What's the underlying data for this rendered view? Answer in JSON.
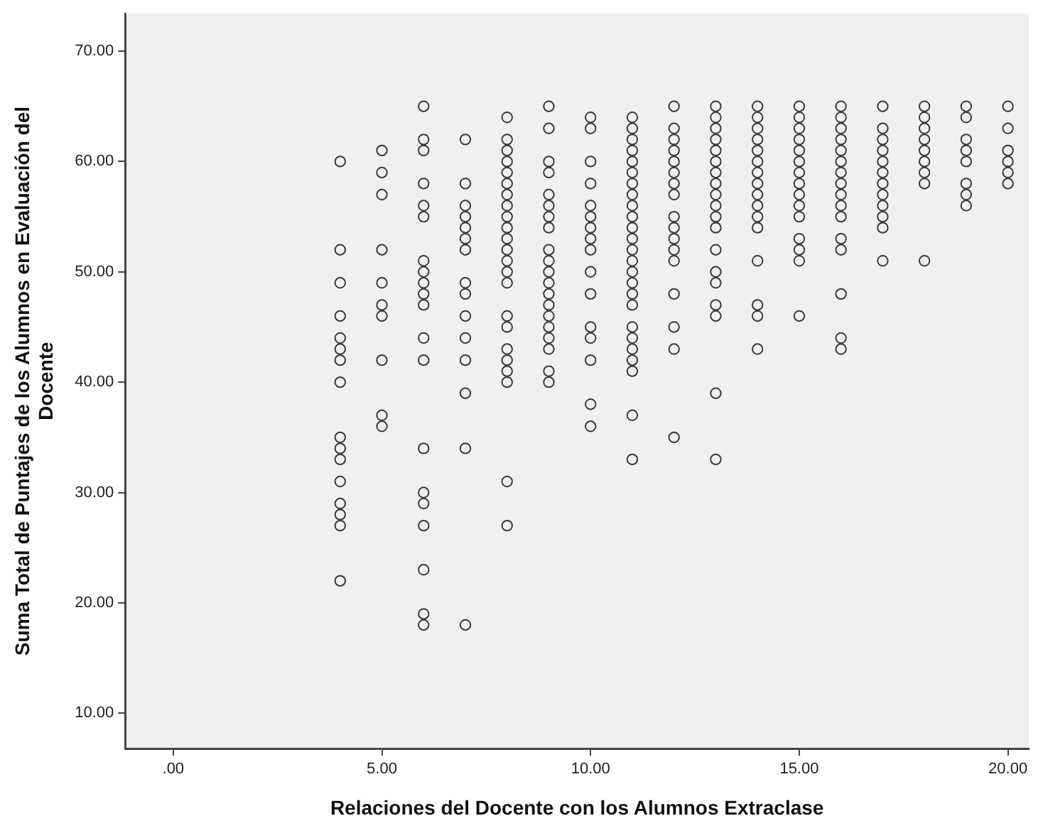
{
  "chart_data": {
    "type": "scatter",
    "xlabel": "Relaciones del Docente con los Alumnos Extraclase",
    "ylabel": "Suma Total de Puntajes de los Alumnos en Evaluación del Docente",
    "color": "#3a3a3a",
    "marker": "circle",
    "xlim": [
      -1.15,
      20.5
    ],
    "ylim": [
      6.8,
      73.4
    ],
    "xticks": [
      {
        "value": 0,
        "label": ".00"
      },
      {
        "value": 5,
        "label": "5.00"
      },
      {
        "value": 10,
        "label": "10.00"
      },
      {
        "value": 15,
        "label": "15.00"
      },
      {
        "value": 20,
        "label": "20.00"
      }
    ],
    "yticks": [
      {
        "value": 10,
        "label": "10.00"
      },
      {
        "value": 20,
        "label": "20.00"
      },
      {
        "value": 30,
        "label": "30.00"
      },
      {
        "value": 40,
        "label": "40.00"
      },
      {
        "value": 50,
        "label": "50.00"
      },
      {
        "value": 60,
        "label": "60.00"
      },
      {
        "value": 70,
        "label": "70.00"
      }
    ],
    "x": [
      4,
      4,
      4,
      4,
      4,
      4,
      4,
      4,
      4,
      4,
      4,
      4,
      4,
      4,
      4,
      4,
      5,
      5,
      5,
      5,
      5,
      5,
      5,
      5,
      5,
      5,
      6,
      6,
      6,
      6,
      6,
      6,
      6,
      6,
      6,
      6,
      6,
      6,
      6,
      6,
      6,
      6,
      6,
      6,
      6,
      6,
      7,
      7,
      7,
      7,
      7,
      7,
      7,
      7,
      7,
      7,
      7,
      7,
      7,
      7,
      7,
      8,
      8,
      8,
      8,
      8,
      8,
      8,
      8,
      8,
      8,
      8,
      8,
      8,
      8,
      8,
      8,
      8,
      8,
      8,
      8,
      8,
      8,
      8,
      9,
      9,
      9,
      9,
      9,
      9,
      9,
      9,
      9,
      9,
      9,
      9,
      9,
      9,
      9,
      9,
      9,
      9,
      9,
      9,
      10,
      10,
      10,
      10,
      10,
      10,
      10,
      10,
      10,
      10,
      10,
      10,
      10,
      10,
      10,
      10,
      11,
      11,
      11,
      11,
      11,
      11,
      11,
      11,
      11,
      11,
      11,
      11,
      11,
      11,
      11,
      11,
      11,
      11,
      11,
      11,
      11,
      11,
      11,
      11,
      11,
      12,
      12,
      12,
      12,
      12,
      12,
      12,
      12,
      12,
      12,
      12,
      12,
      12,
      12,
      12,
      12,
      12,
      13,
      13,
      13,
      13,
      13,
      13,
      13,
      13,
      13,
      13,
      13,
      13,
      13,
      13,
      13,
      13,
      13,
      13,
      13,
      14,
      14,
      14,
      14,
      14,
      14,
      14,
      14,
      14,
      14,
      14,
      14,
      14,
      14,
      14,
      14,
      15,
      15,
      15,
      15,
      15,
      15,
      15,
      15,
      15,
      15,
      15,
      15,
      15,
      15,
      15,
      16,
      16,
      16,
      16,
      16,
      16,
      16,
      16,
      16,
      16,
      16,
      16,
      16,
      16,
      16,
      16,
      17,
      17,
      17,
      17,
      17,
      17,
      17,
      17,
      17,
      17,
      17,
      17,
      18,
      18,
      18,
      18,
      18,
      18,
      18,
      18,
      18,
      19,
      19,
      19,
      19,
      19,
      19,
      19,
      19,
      20,
      20,
      20,
      20,
      20,
      20
    ],
    "values": [
      60,
      52,
      49,
      46,
      44,
      43,
      42,
      40,
      35,
      34,
      33,
      31,
      29,
      28,
      27,
      22,
      61,
      59,
      57,
      52,
      49,
      47,
      46,
      42,
      37,
      36,
      65,
      62,
      61,
      58,
      56,
      55,
      51,
      50,
      49,
      48,
      47,
      44,
      42,
      34,
      30,
      29,
      27,
      23,
      19,
      18,
      62,
      58,
      56,
      55,
      54,
      53,
      52,
      49,
      48,
      46,
      44,
      42,
      39,
      34,
      18,
      64,
      62,
      61,
      60,
      59,
      58,
      57,
      56,
      55,
      54,
      53,
      52,
      51,
      50,
      49,
      46,
      45,
      43,
      42,
      41,
      40,
      31,
      27,
      65,
      63,
      60,
      59,
      57,
      56,
      55,
      54,
      52,
      51,
      50,
      49,
      48,
      47,
      46,
      45,
      44,
      43,
      41,
      40,
      64,
      63,
      60,
      58,
      56,
      55,
      54,
      53,
      52,
      50,
      48,
      45,
      44,
      42,
      38,
      36,
      64,
      63,
      62,
      61,
      60,
      59,
      58,
      57,
      56,
      55,
      54,
      53,
      52,
      51,
      50,
      49,
      48,
      47,
      45,
      44,
      43,
      42,
      41,
      37,
      33,
      65,
      63,
      62,
      61,
      60,
      59,
      58,
      57,
      55,
      54,
      53,
      52,
      51,
      48,
      45,
      43,
      35,
      65,
      64,
      63,
      62,
      61,
      60,
      59,
      58,
      57,
      56,
      55,
      54,
      52,
      50,
      49,
      47,
      46,
      39,
      33,
      65,
      64,
      63,
      62,
      61,
      60,
      59,
      58,
      57,
      56,
      55,
      54,
      51,
      47,
      46,
      43,
      65,
      64,
      63,
      62,
      61,
      60,
      59,
      58,
      57,
      56,
      55,
      53,
      52,
      51,
      46,
      65,
      64,
      63,
      62,
      61,
      60,
      59,
      58,
      57,
      56,
      55,
      53,
      52,
      48,
      44,
      43,
      65,
      63,
      62,
      61,
      60,
      59,
      58,
      57,
      56,
      55,
      54,
      51,
      65,
      64,
      63,
      62,
      61,
      60,
      59,
      58,
      51,
      65,
      64,
      62,
      61,
      60,
      58,
      57,
      56,
      65,
      63,
      61,
      60,
      59,
      58
    ]
  }
}
